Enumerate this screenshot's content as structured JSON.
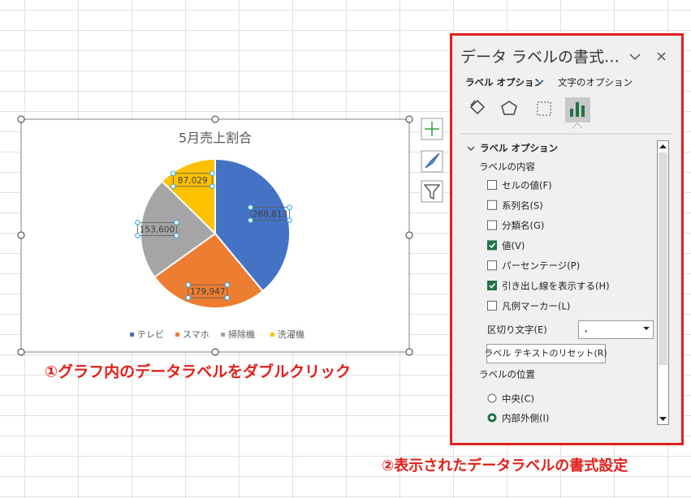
{
  "chart_data": {
    "type": "pie",
    "title": "5月売上割合",
    "categories": [
      "テレビ",
      "スマホ",
      "掃除機",
      "洗濯機"
    ],
    "values": [
      268813,
      179947,
      153600,
      87029
    ],
    "value_labels": [
      "268,813",
      "179,947",
      "153,600",
      "87,029"
    ],
    "colors": [
      "#4472c4",
      "#ed7d31",
      "#a5a5a5",
      "#ffc000"
    ]
  },
  "annotations": [
    "①グラフ内のデータラベルをダブルクリック",
    "②表示されたデータラベルの書式設定"
  ],
  "panel": {
    "title": "データ ラベルの書式…",
    "tabs": [
      "ラベル オプション",
      "文字のオプション"
    ],
    "section": "ラベル オプション",
    "group": "ラベルの内容",
    "checkboxes": [
      {
        "label": "セルの値(F)",
        "checked": false
      },
      {
        "label": "系列名(S)",
        "checked": false
      },
      {
        "label": "分類名(G)",
        "checked": false
      },
      {
        "label": "値(V)",
        "checked": true
      },
      {
        "label": "パーセンテージ(P)",
        "checked": false
      },
      {
        "label": "引き出し線を表示する(H)",
        "checked": true
      },
      {
        "label": "凡例マーカー(L)",
        "checked": false
      }
    ],
    "separator_label": "区切り文字(E)",
    "separator_value": ",",
    "reset_button": "ラベル テキストのリセット(R)",
    "position_group": "ラベルの位置",
    "radios": [
      {
        "label": "中央(C)",
        "selected": false
      },
      {
        "label": "内部外側(I)",
        "selected": true
      }
    ]
  }
}
